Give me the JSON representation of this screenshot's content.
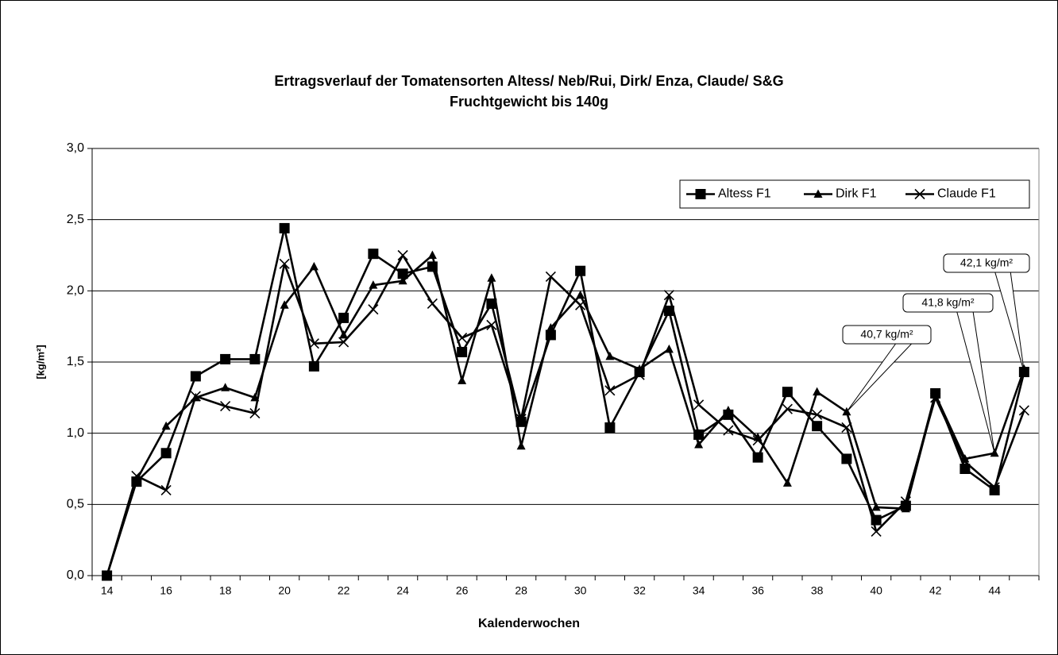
{
  "chart_data": {
    "type": "line",
    "title": "Ertragsverlauf der Tomatensorten Altess/ Neb/Rui, Dirk/ Enza, Claude/ S&G",
    "subtitle": "Fruchtgewicht bis 140g",
    "x_label": "Kalenderwochen",
    "y_label": "[kg/m²]",
    "categories": [
      14,
      null,
      16,
      null,
      18,
      null,
      20,
      null,
      22,
      null,
      24,
      null,
      26,
      null,
      28,
      null,
      30,
      null,
      32,
      null,
      34,
      null,
      36,
      null,
      38,
      null,
      40,
      null,
      42,
      null,
      44,
      null
    ],
    "series": [
      {
        "name": "Altess F1",
        "color": "#000000",
        "marker": "square",
        "values": [
          0,
          0.66,
          0.86,
          1.4,
          1.52,
          1.52,
          2.44,
          1.47,
          1.81,
          2.26,
          2.12,
          2.17,
          1.57,
          1.91,
          1.08,
          1.69,
          2.14,
          1.04,
          1.43,
          1.86,
          0.99,
          1.13,
          0.83,
          1.29,
          1.05,
          0.82,
          0.39,
          0.49,
          1.28,
          0.75,
          0.6,
          1.43
        ]
      },
      {
        "name": "Dirk F1",
        "color": "#000000",
        "marker": "triangle",
        "values": [
          0,
          0.67,
          1.05,
          1.25,
          1.32,
          1.25,
          1.9,
          2.17,
          1.69,
          2.04,
          2.07,
          2.25,
          1.37,
          2.09,
          0.91,
          1.74,
          1.97,
          1.54,
          1.45,
          1.59,
          0.92,
          1.16,
          0.97,
          0.65,
          1.29,
          1.15,
          0.48,
          0.47,
          1.27,
          0.82,
          0.86,
          1.45
        ]
      },
      {
        "name": "Claude F1",
        "color": "#000000",
        "marker": "x",
        "values": [
          0,
          0.7,
          0.6,
          1.26,
          1.19,
          1.14,
          2.19,
          1.63,
          1.64,
          1.87,
          2.25,
          1.91,
          1.67,
          1.76,
          1.1,
          2.1,
          1.9,
          1.3,
          1.41,
          1.97,
          1.2,
          1.02,
          0.95,
          1.17,
          1.13,
          1.04,
          0.31,
          0.52,
          1.25,
          0.8,
          0.62,
          1.16
        ]
      }
    ],
    "annotations": [
      {
        "text": "40,7 kg/m²"
      },
      {
        "text": "41,8 kg/m²"
      },
      {
        "text": "42,1 kg/m²"
      }
    ],
    "ylim": [
      0,
      3
    ],
    "yticks": [
      {
        "value": 0,
        "label": "0,0"
      },
      {
        "value": 0.5,
        "label": "0,5"
      },
      {
        "value": 1,
        "label": "1,0"
      },
      {
        "value": 1.5,
        "label": "1,5"
      },
      {
        "value": 2,
        "label": "2,0"
      },
      {
        "value": 2.5,
        "label": "2,5"
      },
      {
        "value": 3,
        "label": "3,0"
      }
    ],
    "grid": true,
    "legend": "top-right"
  }
}
